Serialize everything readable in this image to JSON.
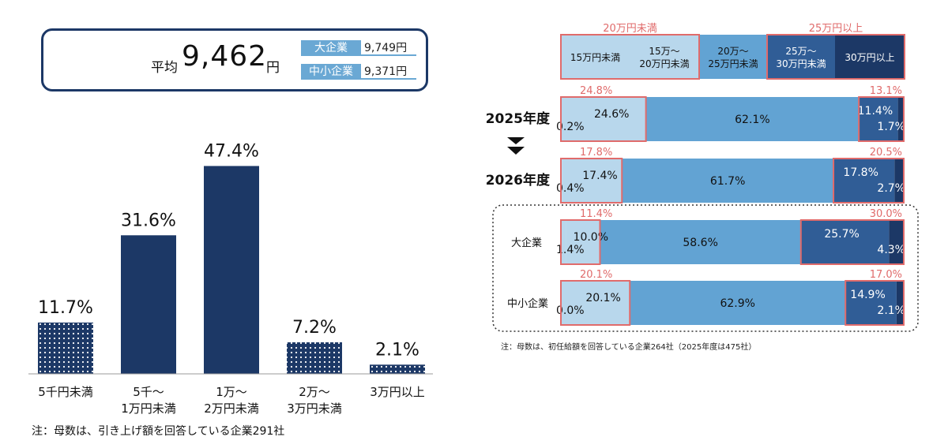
{
  "average_box": {
    "label": "平均",
    "value": "9,462",
    "unit": "円",
    "large_label": "大企業",
    "large_value": "9,749円",
    "sme_label": "中小企業",
    "sme_value": "9,371円"
  },
  "chart_data": [
    {
      "type": "bar",
      "categories": [
        "5千円未満",
        "5千～\n1万円未満",
        "1万～\n2万円未満",
        "2万～\n3万円未満",
        "3万円以上"
      ],
      "values": [
        11.7,
        31.6,
        47.4,
        7.2,
        2.1
      ],
      "value_labels": [
        "11.7%",
        "31.6%",
        "47.4%",
        "7.2%",
        "2.1%"
      ],
      "ylim": [
        0,
        50
      ],
      "bar_styles": [
        "dotted",
        "solid",
        "solid",
        "dotted",
        "dotted"
      ],
      "colors": {
        "bar": "#1c3866",
        "dot": "#ffffff"
      },
      "note": "注：母数は、引き上げ額を回答している企業291社"
    },
    {
      "type": "bar",
      "orientation": "horizontal-stacked-100",
      "legend": [
        "15万円未満",
        "15万～\n20万円未満",
        "20万～\n25万円未満",
        "25万～\n30万円未満",
        "30万円以上"
      ],
      "legend_group_labels": {
        "left": "20万円未満",
        "right": "25万円以上"
      },
      "colors": [
        "#b8d7ec",
        "#b8d7ec",
        "#62a3d3",
        "#305d96",
        "#1c3866"
      ],
      "highlight_color": "#e06b6b",
      "rows": [
        {
          "label": "2025年度",
          "values": [
            0.2,
            24.6,
            62.1,
            11.4,
            1.7
          ],
          "value_labels": [
            "0.2%",
            "24.6%",
            "62.1%",
            "11.4%",
            "1.7%"
          ],
          "low_total": "24.8%",
          "high_total": "13.1%"
        },
        {
          "label": "2026年度",
          "values": [
            0.4,
            17.4,
            61.7,
            17.8,
            2.7
          ],
          "value_labels": [
            "0.4%",
            "17.4%",
            "61.7%",
            "17.8%",
            "2.7%"
          ],
          "low_total": "17.8%",
          "high_total": "20.5%"
        },
        {
          "label": "大企業",
          "values": [
            1.4,
            10.0,
            58.6,
            25.7,
            4.3
          ],
          "value_labels": [
            "1.4%",
            "10.0%",
            "58.6%",
            "25.7%",
            "4.3%"
          ],
          "low_total": "11.4%",
          "high_total": "30.0%"
        },
        {
          "label": "中小企業",
          "values": [
            0.0,
            20.1,
            62.9,
            14.9,
            2.1
          ],
          "value_labels": [
            "0.0%",
            "20.1%",
            "62.9%",
            "14.9%",
            "2.1%"
          ],
          "low_total": "20.1%",
          "high_total": "17.0%"
        }
      ],
      "note": "注：母数は、初任給額を回答している企業264社（2025年度は475社）"
    }
  ]
}
